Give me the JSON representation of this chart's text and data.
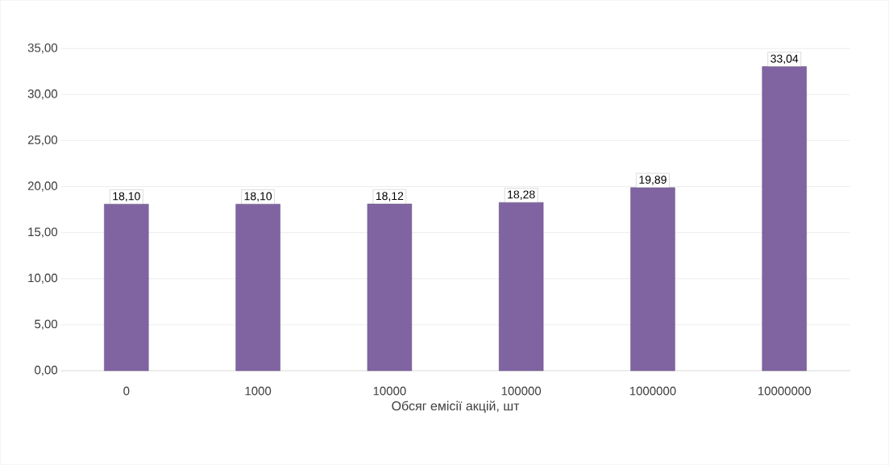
{
  "chart_data": {
    "type": "bar",
    "xlabel": "Обсяг емісії акцій, шт",
    "categories": [
      "0",
      "1000",
      "10000",
      "100000",
      "1000000",
      "10000000"
    ],
    "values": [
      18.1,
      18.1,
      18.12,
      18.28,
      19.89,
      33.04
    ],
    "value_labels": [
      "18,10",
      "18,10",
      "18,12",
      "18,28",
      "19,89",
      "33,04"
    ],
    "color": "#8064a2",
    "ylim": [
      0,
      35
    ],
    "yticks": [
      {
        "value": 0,
        "label": "0,00"
      },
      {
        "value": 5,
        "label": "5,00"
      },
      {
        "value": 10,
        "label": "10,00"
      },
      {
        "value": 15,
        "label": "15,00"
      },
      {
        "value": 20,
        "label": "20,00"
      },
      {
        "value": 25,
        "label": "25,00"
      },
      {
        "value": 30,
        "label": "30,00"
      },
      {
        "value": 35,
        "label": "35,00"
      }
    ],
    "grid": "y"
  }
}
